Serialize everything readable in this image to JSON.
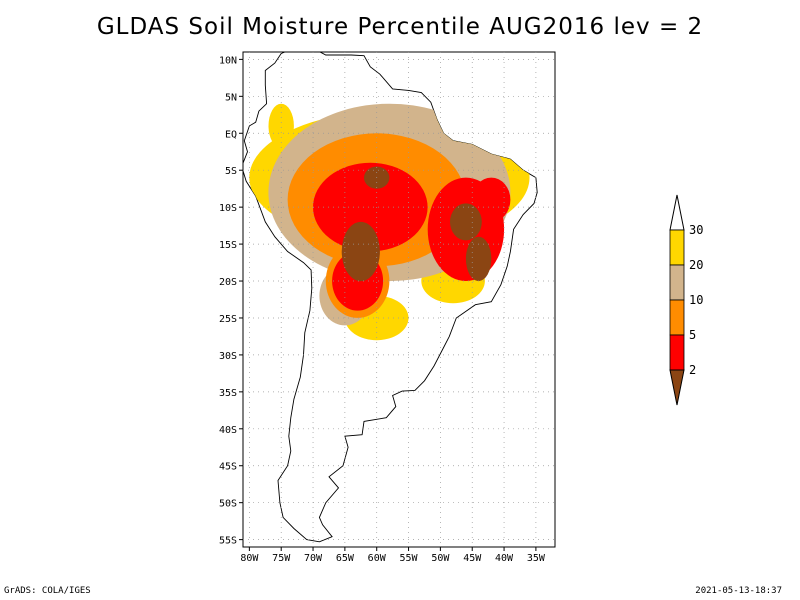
{
  "title": "GLDAS Soil Moisture Percentile AUG2016 lev = 2",
  "footer": {
    "left": "GrADS: COLA/IGES",
    "right": "2021-05-13-18:37"
  },
  "colors": {
    "lt2": "#8b4513",
    "p2to5": "#ff0000",
    "p5to10": "#ff8c00",
    "p10to20": "#d2b48c",
    "p20to30": "#ffd700",
    "gt30": "#ffffff"
  },
  "chart_data": {
    "type": "heatmap",
    "title": "GLDAS Soil Moisture Percentile AUG2016 lev = 2",
    "region": "South America",
    "lon_range": [
      -81,
      -32
    ],
    "lat_range": [
      -56,
      11
    ],
    "x_ticks": [
      "80W",
      "75W",
      "70W",
      "65W",
      "60W",
      "55W",
      "50W",
      "45W",
      "40W",
      "35W"
    ],
    "y_ticks": [
      "10N",
      "5N",
      "EQ",
      "5S",
      "10S",
      "15S",
      "20S",
      "25S",
      "30S",
      "35S",
      "40S",
      "45S",
      "50S",
      "55S"
    ],
    "grid": true,
    "legend": {
      "placement": "right",
      "thresholds": [
        "30",
        "20",
        "10",
        "5",
        "2"
      ],
      "classes": [
        "<2",
        "2-5",
        "5-10",
        "10-20",
        "20-30",
        ">30"
      ]
    },
    "dry_regions": [
      {
        "class": "<2",
        "lon": -62.5,
        "lat": -16,
        "rx": 3,
        "ry": 4
      },
      {
        "class": "<2",
        "lon": -46,
        "lat": -12,
        "rx": 2.5,
        "ry": 2.5
      },
      {
        "class": "<2",
        "lon": -44,
        "lat": -17,
        "rx": 2,
        "ry": 3
      },
      {
        "class": "<2",
        "lon": -60,
        "lat": -6,
        "rx": 2,
        "ry": 1.5
      },
      {
        "class": "2-5",
        "lon": -61,
        "lat": -10,
        "rx": 9,
        "ry": 6
      },
      {
        "class": "2-5",
        "lon": -46,
        "lat": -13,
        "rx": 6,
        "ry": 7
      },
      {
        "class": "2-5",
        "lon": -63,
        "lat": -20,
        "rx": 4,
        "ry": 4
      },
      {
        "class": "2-5",
        "lon": -42,
        "lat": -9,
        "rx": 3,
        "ry": 3
      },
      {
        "class": "5-10",
        "lon": -60,
        "lat": -9,
        "rx": 14,
        "ry": 9
      },
      {
        "class": "5-10",
        "lon": -63,
        "lat": -20,
        "rx": 5,
        "ry": 5
      },
      {
        "class": "10-20",
        "lon": -58,
        "lat": -8,
        "rx": 19,
        "ry": 12
      },
      {
        "class": "10-20",
        "lon": -65,
        "lat": -22,
        "rx": 4,
        "ry": 4
      },
      {
        "class": "20-30",
        "lon": -58,
        "lat": -6,
        "rx": 22,
        "ry": 9
      },
      {
        "class": "20-30",
        "lon": -48,
        "lat": -20,
        "rx": 5,
        "ry": 3
      },
      {
        "class": "20-30",
        "lon": -60,
        "lat": -25,
        "rx": 5,
        "ry": 3
      },
      {
        "class": "20-30",
        "lon": -75,
        "lat": 1,
        "rx": 2,
        "ry": 3
      }
    ]
  }
}
